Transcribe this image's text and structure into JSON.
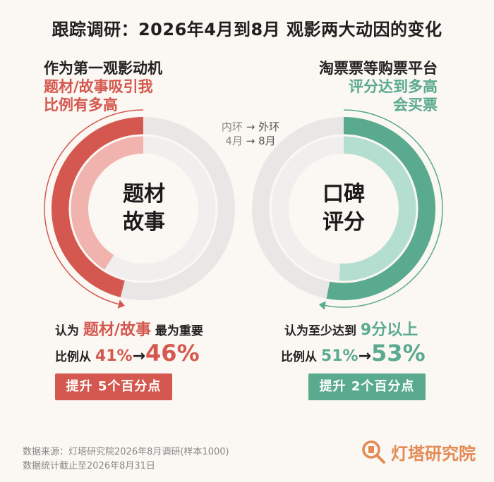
{
  "title": "跟踪调研：2026年4月到8月 观影两大动因的变化",
  "left_question": {
    "line1": "作为第一观影动机",
    "line2": "题材/故事吸引我",
    "line3": "比例有多高"
  },
  "right_question": {
    "line1": "淘票票等购票平台",
    "line2": "评分达到多高",
    "line3": "会买票"
  },
  "legend": {
    "ring_prefix": "内环",
    "ring_suffix": "外环",
    "month_prefix": "4月",
    "month_suffix": "8月",
    "arrow": "→"
  },
  "colors": {
    "red": "#d4584f",
    "red_light": "#f0b3ad",
    "green": "#5aaa8f",
    "green_light": "#b3ded0",
    "track": "#e9e7e6"
  },
  "chart_data": {
    "type": "radial-bar",
    "charts": [
      {
        "center_label_line1": "题材",
        "center_label_line2": "故事",
        "inner": {
          "name": "4月",
          "value": 41
        },
        "outer": {
          "name": "8月",
          "value": 46
        },
        "color": "red",
        "statement": {
          "before": "认为",
          "highlight": "题材/故事",
          "after": "最为重要"
        },
        "change_prefix": "比例从",
        "from_label": "41%",
        "to_label": "46%",
        "arrow": "→",
        "pill_prefix": "提升",
        "pill_value": "5个百分点"
      },
      {
        "center_label_line1": "口碑",
        "center_label_line2": "评分",
        "inner": {
          "name": "4月",
          "value": 51
        },
        "outer": {
          "name": "8月",
          "value": 53
        },
        "color": "green",
        "statement": {
          "before": "认为至少达到",
          "highlight": "9分以上",
          "after": ""
        },
        "change_prefix": "比例从",
        "from_label": "51%",
        "to_label": "53%",
        "arrow": "→",
        "pill_prefix": "提升",
        "pill_value": "2个百分点"
      }
    ]
  },
  "source": {
    "line1": "数据来源：灯塔研究院2026年8月调研(样本1000)",
    "line2": "数据统计截止至2026年8月31日"
  },
  "logo": {
    "text": "灯塔研究院",
    "icon": "lighthouse-search-icon"
  }
}
